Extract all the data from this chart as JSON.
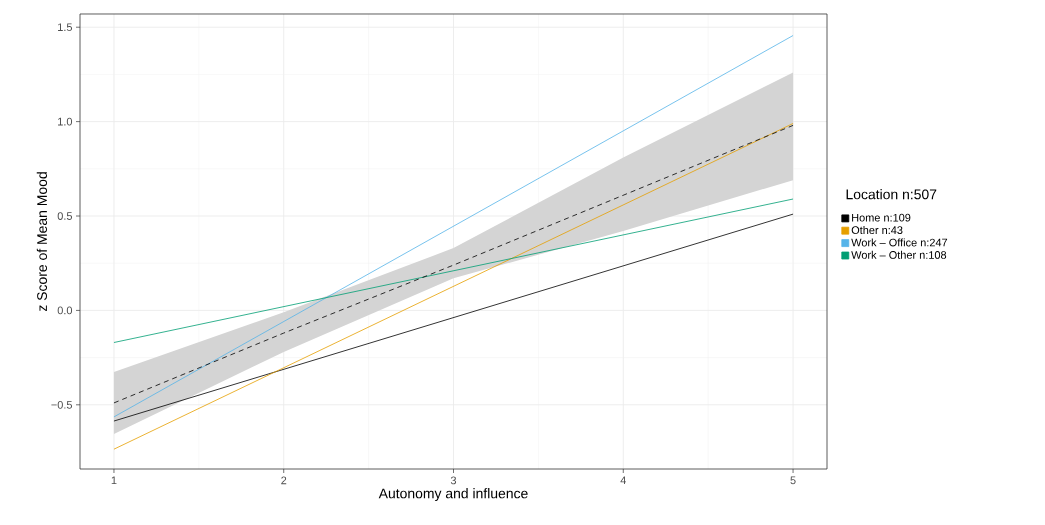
{
  "chart_data": {
    "type": "line",
    "xlabel": "Autonomy and influence",
    "ylabel": "z Score of Mean Mood",
    "legend_title": "Location n:507",
    "x": [
      1,
      5
    ],
    "series": [
      {
        "name": "Home n:109",
        "color": "#000000",
        "values": [
          -0.586,
          0.51
        ]
      },
      {
        "name": "Other n:43",
        "color": "#E69F00",
        "values": [
          -0.735,
          0.99
        ]
      },
      {
        "name": "Work – Office n:247",
        "color": "#56B4E9",
        "values": [
          -0.564,
          1.456
        ]
      },
      {
        "name": "Work – Other n:108",
        "color": "#009E73",
        "values": [
          -0.17,
          0.59
        ]
      },
      {
        "color": "#000000",
        "line_style": "dashed",
        "x": [
          1,
          2,
          3,
          4,
          5
        ],
        "values": [
          -0.49,
          -0.12,
          0.24,
          0.61,
          0.98
        ],
        "lower": [
          -0.655,
          -0.22,
          0.17,
          0.42,
          0.69
        ],
        "upper": [
          -0.326,
          -0.01,
          0.33,
          0.81,
          1.26
        ]
      }
    ],
    "xlim": [
      0.8,
      5.2
    ],
    "ylim": [
      -0.84,
      1.57
    ],
    "xticks": [
      1,
      2,
      3,
      4,
      5
    ],
    "yticks": [
      {
        "value": -0.5,
        "label": "−0.5"
      },
      {
        "value": 0,
        "label": "0.0"
      },
      {
        "value": 0.5,
        "label": "0.5"
      },
      {
        "value": 1,
        "label": "1.0"
      },
      {
        "value": 1.5,
        "label": "1.5"
      }
    ],
    "grid": true,
    "legend": "right"
  }
}
